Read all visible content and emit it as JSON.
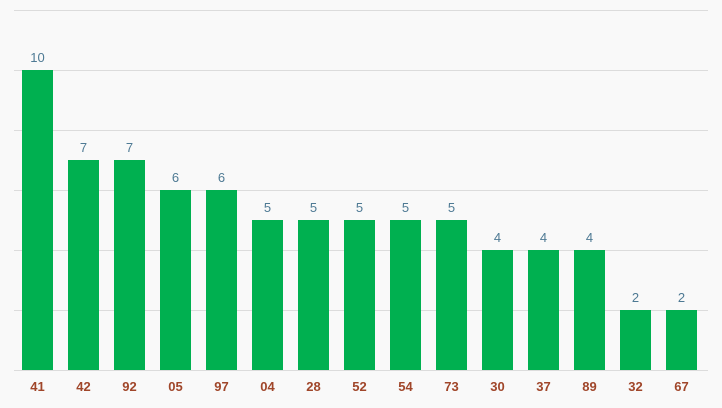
{
  "colors": {
    "background": "#f9f9f9",
    "bar": "#00b050",
    "grid": "#dcdcdc",
    "value_label": "#4e7a94",
    "category_label": "#a0462a"
  },
  "chart_data": {
    "type": "bar",
    "title": "",
    "xlabel": "",
    "ylabel": "",
    "categories": [
      "41",
      "42",
      "92",
      "05",
      "97",
      "04",
      "28",
      "52",
      "54",
      "73",
      "30",
      "37",
      "89",
      "32",
      "67"
    ],
    "values": [
      10,
      7,
      7,
      6,
      6,
      5,
      5,
      5,
      5,
      5,
      4,
      4,
      4,
      2,
      2
    ],
    "ylim": [
      0,
      12
    ],
    "y_grid_step": 2,
    "grid": true,
    "legend": "none",
    "show_y_tick_labels": false
  }
}
